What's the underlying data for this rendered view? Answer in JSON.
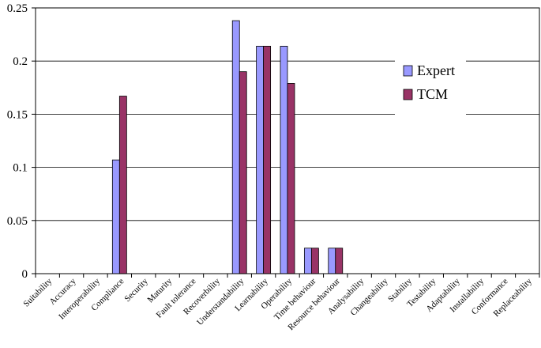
{
  "chart_data": {
    "type": "bar",
    "categories": [
      "Suitability",
      "Accuracy",
      "Interoperability",
      "Compliance",
      "Security",
      "Maturity",
      "Fault tolerance",
      "Recoverbility",
      "Understandability",
      "Learnability",
      "Operability",
      "Time behaviour",
      "Resource behaviour",
      "Analysability",
      "Changeability",
      "Stability",
      "Testability",
      "Adaptability",
      "Installability",
      "Conformance",
      "Replaceability"
    ],
    "series": [
      {
        "name": "Expert",
        "color": "#9999FF",
        "values": [
          0,
          0,
          0,
          0.107,
          0,
          0,
          0,
          0,
          0.238,
          0.214,
          0.214,
          0.024,
          0.024,
          0,
          0,
          0,
          0,
          0,
          0,
          0,
          0
        ]
      },
      {
        "name": "TCM",
        "color": "#993366",
        "values": [
          0,
          0,
          0,
          0.167,
          0,
          0,
          0,
          0,
          0.19,
          0.214,
          0.179,
          0.024,
          0.024,
          0,
          0,
          0,
          0,
          0,
          0,
          0,
          0
        ]
      }
    ],
    "ylim": [
      0,
      0.25
    ],
    "yticks": [
      0,
      0.05,
      0.1,
      0.15,
      0.2,
      0.25
    ],
    "ytick_labels": [
      "0",
      "0.05",
      "0.1",
      "0.15",
      "0.2",
      "0.25"
    ],
    "grid": true,
    "legend": "right"
  }
}
